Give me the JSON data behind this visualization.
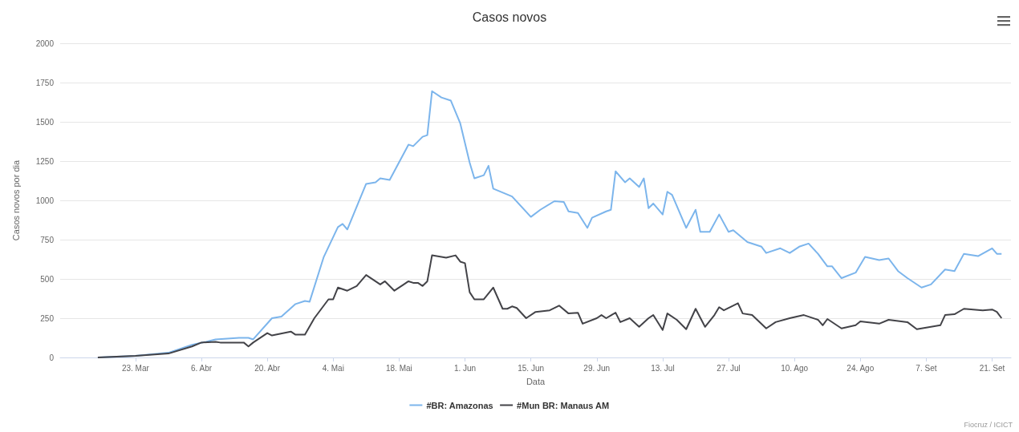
{
  "chart_data": {
    "type": "line",
    "title": "Casos novos",
    "xlabel": "Data",
    "ylabel": "Casos novos por dia",
    "xlim": [
      "--03-07",
      "--09-25"
    ],
    "xticks": [
      {
        "value": "--03-23",
        "label": "23. Mar"
      },
      {
        "value": "--04-06",
        "label": "6. Abr"
      },
      {
        "value": "--04-20",
        "label": "20. Abr"
      },
      {
        "value": "--05-04",
        "label": "4. Mai"
      },
      {
        "value": "--05-18",
        "label": "18. Mai"
      },
      {
        "value": "--06-01",
        "label": "1. Jun"
      },
      {
        "value": "--06-15",
        "label": "15. Jun"
      },
      {
        "value": "--06-29",
        "label": "29. Jun"
      },
      {
        "value": "--07-13",
        "label": "13. Jul"
      },
      {
        "value": "--07-27",
        "label": "27. Jul"
      },
      {
        "value": "--08-10",
        "label": "10. Ago"
      },
      {
        "value": "--08-24",
        "label": "24. Ago"
      },
      {
        "value": "--09-07",
        "label": "7. Set"
      },
      {
        "value": "--09-21",
        "label": "21. Set"
      }
    ],
    "ylim": [
      0,
      2000
    ],
    "yticks": [
      0,
      250,
      500,
      750,
      1000,
      1250,
      1500,
      1750,
      2000
    ],
    "grid": "y",
    "legend": "bottom",
    "marker": "none",
    "line_style": "solid",
    "annotations": [
      "Fiocruz / ICICT"
    ],
    "series": [
      {
        "name": "#BR: Amazonas",
        "color": "#7cb5ec",
        "x": [
          "--03-15",
          "--03-23",
          "--03-30",
          "--04-04",
          "--04-07",
          "--04-09",
          "--04-14",
          "--04-16",
          "--04-17",
          "--04-21",
          "--04-23",
          "--04-26",
          "--04-28",
          "--04-29",
          "--05-02",
          "--05-05",
          "--05-06",
          "--05-07",
          "--05-11",
          "--05-13",
          "--05-14",
          "--05-16",
          "--05-20",
          "--05-21",
          "--05-23",
          "--05-24",
          "--05-25",
          "--05-27",
          "--05-29",
          "--05-31",
          "--06-02",
          "--06-03",
          "--06-05",
          "--06-06",
          "--06-07",
          "--06-11",
          "--06-15",
          "--06-17",
          "--06-20",
          "--06-22",
          "--06-23",
          "--06-25",
          "--06-27",
          "--06-28",
          "--07-01",
          "--07-02",
          "--07-03",
          "--07-05",
          "--07-06",
          "--07-08",
          "--07-09",
          "--07-10",
          "--07-11",
          "--07-13",
          "--07-14",
          "--07-15",
          "--07-18",
          "--07-20",
          "--07-21",
          "--07-23",
          "--07-25",
          "--07-27",
          "--07-28",
          "--07-31",
          "--08-03",
          "--08-04",
          "--08-07",
          "--08-09",
          "--08-11",
          "--08-13",
          "--08-15",
          "--08-17",
          "--08-18",
          "--08-20",
          "--08-23",
          "--08-25",
          "--08-28",
          "--08-30",
          "--09-01",
          "--09-03",
          "--09-06",
          "--09-08",
          "--09-11",
          "--09-13",
          "--09-15",
          "--09-18",
          "--09-21",
          "--09-22",
          "--09-23"
        ],
        "values": [
          0,
          10,
          30,
          80,
          100,
          115,
          125,
          125,
          115,
          250,
          260,
          340,
          360,
          355,
          640,
          830,
          850,
          815,
          1105,
          1115,
          1140,
          1130,
          1355,
          1345,
          1405,
          1415,
          1695,
          1655,
          1635,
          1490,
          1240,
          1140,
          1160,
          1220,
          1075,
          1025,
          895,
          940,
          995,
          990,
          930,
          920,
          825,
          890,
          930,
          940,
          1185,
          1115,
          1140,
          1085,
          1140,
          950,
          980,
          910,
          1055,
          1035,
          825,
          940,
          800,
          800,
          910,
          800,
          810,
          735,
          705,
          665,
          695,
          665,
          705,
          725,
          660,
          580,
          580,
          505,
          540,
          640,
          620,
          630,
          550,
          505,
          445,
          465,
          560,
          550,
          660,
          645,
          695,
          660,
          660
        ]
      },
      {
        "name": "#Mun BR: Manaus AM",
        "color": "#434348",
        "x": [
          "--03-15",
          "--03-23",
          "--03-30",
          "--04-04",
          "--04-06",
          "--04-09",
          "--04-10",
          "--04-15",
          "--04-16",
          "--04-17",
          "--04-20",
          "--04-21",
          "--04-25",
          "--04-26",
          "--04-28",
          "--04-30",
          "--05-03",
          "--05-04",
          "--05-05",
          "--05-07",
          "--05-09",
          "--05-11",
          "--05-14",
          "--05-15",
          "--05-17",
          "--05-19",
          "--05-20",
          "--05-21",
          "--05-22",
          "--05-23",
          "--05-24",
          "--05-25",
          "--05-27",
          "--05-28",
          "--05-30",
          "--05-31",
          "--06-01",
          "--06-02",
          "--06-03",
          "--06-05",
          "--06-07",
          "--06-09",
          "--06-10",
          "--06-11",
          "--06-12",
          "--06-14",
          "--06-16",
          "--06-19",
          "--06-21",
          "--06-23",
          "--06-25",
          "--06-26",
          "--06-29",
          "--06-30",
          "--07-01",
          "--07-03",
          "--07-04",
          "--07-06",
          "--07-08",
          "--07-10",
          "--07-11",
          "--07-13",
          "--07-14",
          "--07-16",
          "--07-18",
          "--07-20",
          "--07-22",
          "--07-24",
          "--07-25",
          "--07-26",
          "--07-29",
          "--07-30",
          "--08-01",
          "--08-04",
          "--08-06",
          "--08-09",
          "--08-12",
          "--08-15",
          "--08-16",
          "--08-17",
          "--08-20",
          "--08-23",
          "--08-24",
          "--08-28",
          "--08-30",
          "--09-03",
          "--09-05",
          "--09-10",
          "--09-11",
          "--09-13",
          "--09-15",
          "--09-19",
          "--09-21",
          "--09-22",
          "--09-23"
        ],
        "values": [
          0,
          10,
          25,
          70,
          95,
          100,
          95,
          95,
          70,
          95,
          155,
          140,
          165,
          145,
          145,
          250,
          370,
          370,
          445,
          425,
          455,
          525,
          465,
          485,
          425,
          465,
          485,
          475,
          475,
          455,
          485,
          650,
          640,
          635,
          650,
          610,
          600,
          415,
          370,
          370,
          445,
          310,
          310,
          325,
          315,
          250,
          290,
          300,
          330,
          280,
          285,
          215,
          250,
          270,
          250,
          285,
          225,
          250,
          195,
          250,
          270,
          175,
          280,
          240,
          180,
          310,
          195,
          270,
          320,
          300,
          345,
          280,
          270,
          185,
          225,
          250,
          270,
          240,
          205,
          245,
          185,
          205,
          230,
          215,
          240,
          225,
          180,
          205,
          270,
          275,
          310,
          300,
          305,
          290,
          250
        ]
      }
    ]
  }
}
